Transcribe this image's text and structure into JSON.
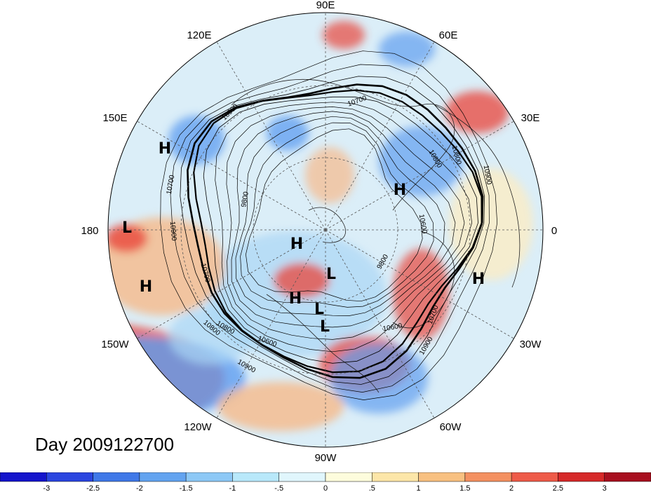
{
  "title": "Day 2009122700",
  "longitude_labels": [
    "90E",
    "60E",
    "120E",
    "150E",
    "30E",
    "180",
    "0",
    "150W",
    "30W",
    "120W",
    "60W",
    "90W"
  ],
  "contour_labels": [
    "10700",
    "10900",
    "10800",
    "10600",
    "9800",
    "10700",
    "10800",
    "10900",
    "10700",
    "10600",
    "10800",
    "10900",
    "9800",
    "10900",
    "10800",
    "10700",
    "10600",
    "10900"
  ],
  "markers": [
    "H",
    "L",
    "H",
    "H",
    "H",
    "L",
    "H",
    "H",
    "L",
    "L"
  ],
  "colorbar": {
    "ticks": [
      "-3",
      "-2.5",
      "-2",
      "-1.5",
      "-1",
      "-.5",
      "0",
      ".5",
      "1",
      "1.5",
      "2",
      "2.5",
      "3"
    ],
    "colors": [
      "#1414cc",
      "#2a45e0",
      "#3f78e8",
      "#62a3f0",
      "#8cc8f6",
      "#b8e8fa",
      "#e0f6fc",
      "#fdfcdc",
      "#fce6a8",
      "#f8c080",
      "#f49060",
      "#ee5a48",
      "#d62828",
      "#a80e1e"
    ]
  },
  "fields": {
    "blue": "#5f9ef0",
    "light_blue": "#a9d6f5",
    "red": "#e8473c",
    "orange": "#f6b98a",
    "cream": "#fbecc4",
    "ocean_base": "#dbeef8"
  }
}
